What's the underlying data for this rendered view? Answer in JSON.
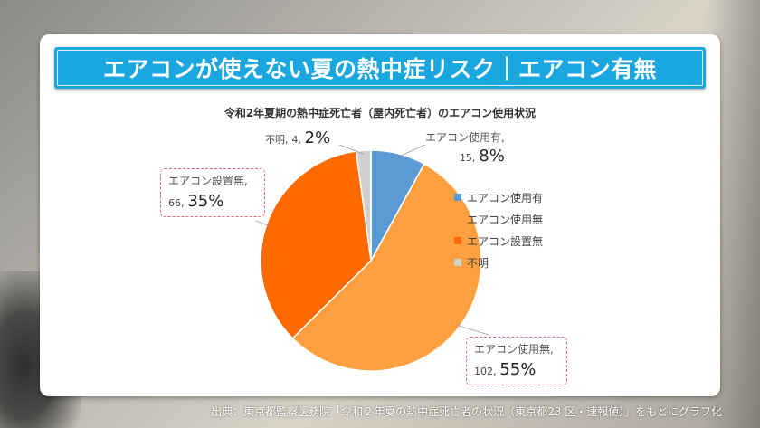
{
  "banner": {
    "title": "エアコンが使えない夏の熱中症リスク｜エアコン有無"
  },
  "source": {
    "text": "出典：東京都監察医務院「令和２年夏の熱中症死亡者の状況（東京都23 区・速報値）」をもとにグラフ化"
  },
  "colors": {
    "banner": "#1aa6df",
    "slice_used": "#5b9bd5",
    "slice_not_used": "#ffa040",
    "slice_not_installed": "#ff6a00",
    "slice_unknown": "#d0d0d0",
    "callout_border": "#e06a74"
  },
  "chart_data": {
    "type": "pie",
    "title": "令和2年夏期の熱中症死亡者（屋内死亡者）のエアコン使用状況",
    "legend_position": "right",
    "slices": [
      {
        "name": "エアコン使用有",
        "value": 15,
        "percent": "8%",
        "color": "#5b9bd5"
      },
      {
        "name": "エアコン使用無",
        "value": 102,
        "percent": "55%",
        "color": "#ffa040"
      },
      {
        "name": "エアコン設置無",
        "value": 66,
        "percent": "35%",
        "color": "#ff6a00"
      },
      {
        "name": "不明",
        "value": 4,
        "percent": "2%",
        "color": "#d0d0d0"
      }
    ],
    "labels": {
      "used": {
        "name": "エアコン使用有,",
        "value": "15,",
        "percent": "8%"
      },
      "not_used": {
        "name": "エアコン使用無,",
        "value": "102,",
        "percent": "55%"
      },
      "not_installed": {
        "name": "エアコン設置無,",
        "value": "66,",
        "percent": "35%"
      },
      "unknown": {
        "name": "不明,",
        "value": "4,",
        "percent": "2%"
      }
    },
    "legend": [
      "エアコン使用有",
      "エアコン使用無",
      "エアコン設置無",
      "不明"
    ]
  }
}
